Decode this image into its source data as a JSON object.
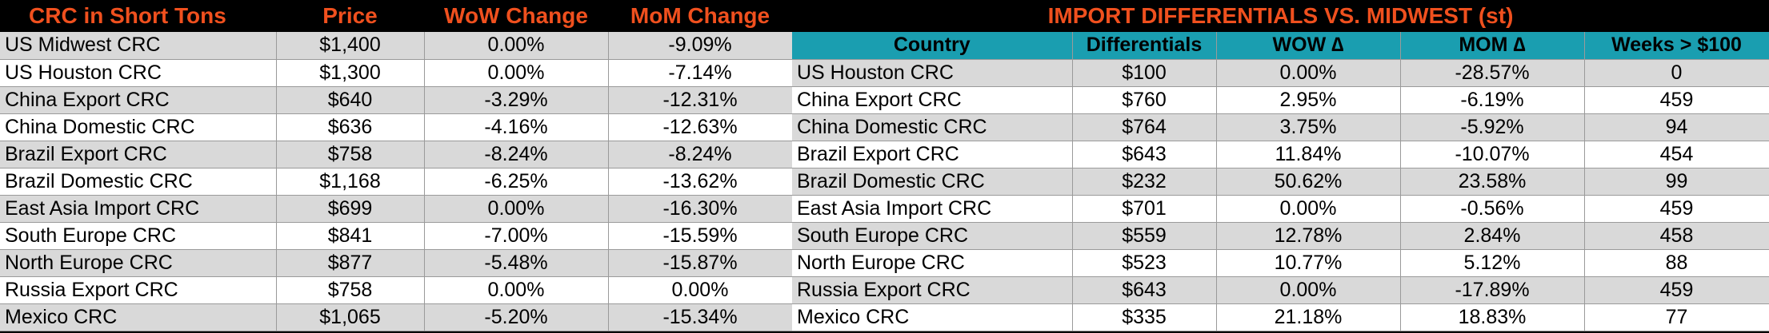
{
  "left_table": {
    "headers": [
      "CRC in Short Tons",
      "Price",
      "WoW Change",
      "MoM Change"
    ],
    "rows": [
      [
        "US Midwest CRC",
        "$1,400",
        "0.00%",
        "-9.09%"
      ],
      [
        "US Houston CRC",
        "$1,300",
        "0.00%",
        "-7.14%"
      ],
      [
        "China Export CRC",
        "$640",
        "-3.29%",
        "-12.31%"
      ],
      [
        "China Domestic CRC",
        "$636",
        "-4.16%",
        "-12.63%"
      ],
      [
        "Brazil Export CRC",
        "$758",
        "-8.24%",
        "-8.24%"
      ],
      [
        "Brazil Domestic CRC",
        "$1,168",
        "-6.25%",
        "-13.62%"
      ],
      [
        "East Asia Import CRC",
        "$699",
        "0.00%",
        "-16.30%"
      ],
      [
        "South Europe CRC",
        "$841",
        "-7.00%",
        "-15.59%"
      ],
      [
        "North Europe CRC",
        "$877",
        "-5.48%",
        "-15.87%"
      ],
      [
        "Russia Export CRC",
        "$758",
        "0.00%",
        "0.00%"
      ],
      [
        "Mexico CRC",
        "$1,065",
        "-5.20%",
        "-15.34%"
      ]
    ]
  },
  "right_table": {
    "title": "IMPORT DIFFERENTIALS VS. MIDWEST (st)",
    "headers": [
      "Country",
      "Differentials",
      "WOW ∆",
      "MOM ∆",
      "Weeks > $100"
    ],
    "rows": [
      [
        "US Houston CRC",
        "$100",
        "0.00%",
        "-28.57%",
        "0"
      ],
      [
        "China Export CRC",
        "$760",
        "2.95%",
        "-6.19%",
        "459"
      ],
      [
        "China Domestic CRC",
        "$764",
        "3.75%",
        "-5.92%",
        "94"
      ],
      [
        "Brazil Export CRC",
        "$643",
        "11.84%",
        "-10.07%",
        "454"
      ],
      [
        "Brazil Domestic CRC",
        "$232",
        "50.62%",
        "23.58%",
        "99"
      ],
      [
        "East Asia Import CRC",
        "$701",
        "0.00%",
        "-0.56%",
        "459"
      ],
      [
        "South Europe CRC",
        "$559",
        "12.78%",
        "2.84%",
        "458"
      ],
      [
        "North Europe CRC",
        "$523",
        "10.77%",
        "5.12%",
        "88"
      ],
      [
        "Russia Export CRC",
        "$643",
        "0.00%",
        "-17.89%",
        "459"
      ],
      [
        "Mexico CRC",
        "$335",
        "21.18%",
        "18.83%",
        "77"
      ]
    ]
  },
  "colors": {
    "header_orange": "#f0501e",
    "header_teal": "#1a9eb0",
    "row_gray": "#d9d9d9",
    "row_white": "#ffffff",
    "background": "#000000"
  }
}
